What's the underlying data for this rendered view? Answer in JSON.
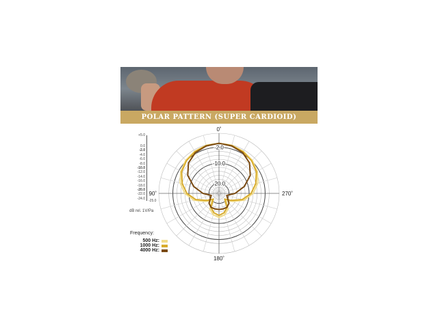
{
  "banner": {
    "title": "POLAR PATTERN (SUPER CARDIOID)"
  },
  "chart_data": {
    "type": "polar-line",
    "title": "POLAR PATTERN (SUPER CARDIOID)",
    "radial_unit": "dB rel. 1V/Pa",
    "radial_range": [
      -25,
      5
    ],
    "scale_ticks": [
      "+5.0",
      "0.0",
      "-2.0",
      "-4.0",
      "-6.0",
      "-8.0",
      "-10.0",
      "-12.0",
      "-14.0",
      "-16.0",
      "-18.0",
      "-20.0",
      "-22.0",
      "-24.0",
      "-25.0"
    ],
    "ring_labels": [
      "-2.0",
      "-10.0",
      "-20.0"
    ],
    "angle_labels": {
      "0": "0˚",
      "90": "90˚",
      "180": "180˚",
      "270": "270˚"
    },
    "legend_title": "Frequency:",
    "angles_deg": [
      0,
      15,
      30,
      45,
      60,
      75,
      90,
      105,
      120,
      135,
      150,
      165,
      180
    ],
    "series": [
      {
        "name": "500 Hz:",
        "color": "#f1dc8a",
        "db": [
          0,
          -0.2,
          -0.8,
          -1.6,
          -3,
          -5,
          -8,
          -12,
          -17,
          -20,
          -16,
          -14,
          -13
        ]
      },
      {
        "name": "1000 Hz:",
        "color": "#d9ac2c",
        "db": [
          0,
          -0.3,
          -1,
          -2,
          -3.5,
          -6,
          -9,
          -13,
          -18,
          -21,
          -17,
          -15,
          -14
        ]
      },
      {
        "name": "4000 Hz:",
        "color": "#7a4a12",
        "db": [
          0,
          -0.5,
          -1.5,
          -3.5,
          -7,
          -12,
          -17,
          -21,
          -20,
          -18,
          -17,
          -17,
          -17
        ]
      }
    ]
  }
}
